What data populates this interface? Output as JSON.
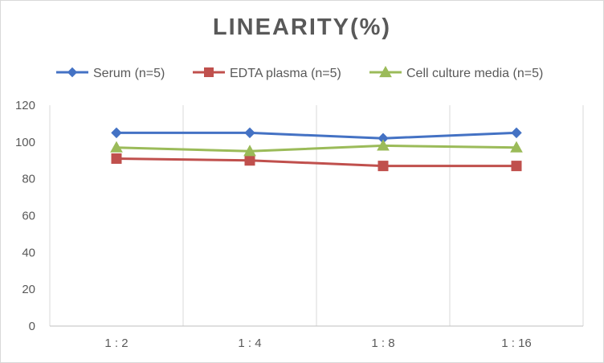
{
  "chart_data": {
    "type": "line",
    "title": "LINEARITY(%)",
    "categories": [
      "1:2",
      "1:4",
      "1:8",
      "1:16"
    ],
    "ylim": [
      0,
      120
    ],
    "yticks": [
      0,
      20,
      40,
      60,
      80,
      100,
      120
    ],
    "grid": "vertical category gridlines only",
    "legend_position": "top",
    "series": [
      {
        "name": "Serum (n=5)",
        "values": [
          105,
          105,
          102,
          105
        ],
        "color": "#4472c4",
        "marker": "diamond"
      },
      {
        "name": "EDTA plasma (n=5)",
        "values": [
          91,
          90,
          87,
          87
        ],
        "color": "#c0504d",
        "marker": "square"
      },
      {
        "name": "Cell culture media (n=5)",
        "values": [
          97,
          95,
          98,
          97
        ],
        "color": "#9bbb59",
        "marker": "triangle"
      }
    ]
  }
}
